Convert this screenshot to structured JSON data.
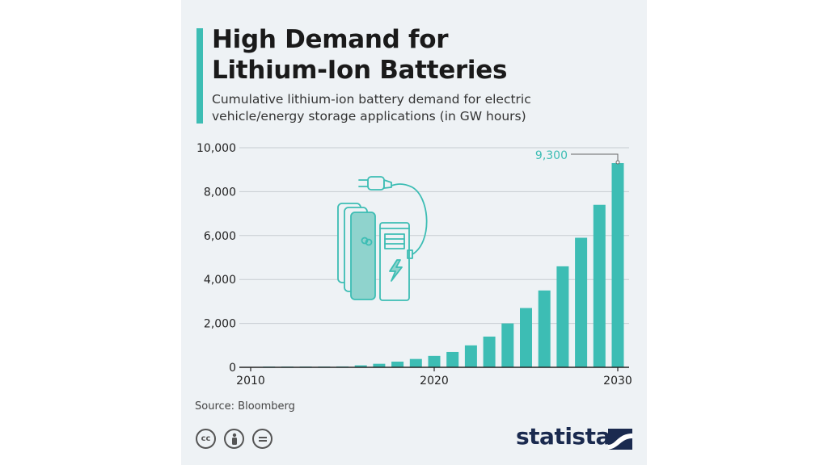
{
  "header": {
    "title_line1": "High Demand for",
    "title_line2": "Lithium-Ion Batteries",
    "subtitle_line1": "Cumulative lithium-ion battery demand for electric",
    "subtitle_line2": "vehicle/energy storage applications (in GW hours)"
  },
  "footer": {
    "source": "Source: Bloomberg",
    "brand": "statista",
    "license_icons": [
      "creative-commons-icon",
      "attribution-icon",
      "no-derivatives-icon"
    ]
  },
  "colors": {
    "accent": "#3dbdb4",
    "background": "#eef2f5",
    "brand": "#1a2a4f"
  },
  "chart_data": {
    "type": "bar",
    "title": "High Demand for Lithium-Ion Batteries",
    "subtitle": "Cumulative lithium-ion battery demand for electric vehicle/energy storage applications (in GW hours)",
    "categories": [
      2010,
      2011,
      2012,
      2013,
      2014,
      2015,
      2016,
      2017,
      2018,
      2019,
      2020,
      2021,
      2022,
      2023,
      2024,
      2025,
      2026,
      2027,
      2028,
      2029,
      2030
    ],
    "values": [
      0,
      2,
      4,
      8,
      20,
      40,
      90,
      160,
      260,
      380,
      520,
      700,
      1000,
      1400,
      2000,
      2700,
      3500,
      4600,
      5900,
      7400,
      9300
    ],
    "x_ticks": [
      "2010",
      "2020",
      "2030"
    ],
    "y_ticks": [
      "0",
      "2,000",
      "4,000",
      "6,000",
      "8,000",
      "10,000"
    ],
    "ylim": [
      0,
      10000
    ],
    "xlabel": "",
    "ylabel": "",
    "annotation": {
      "category": 2030,
      "label": "9,300"
    },
    "grid": true,
    "illustration": "ev-charging-station-icon"
  }
}
